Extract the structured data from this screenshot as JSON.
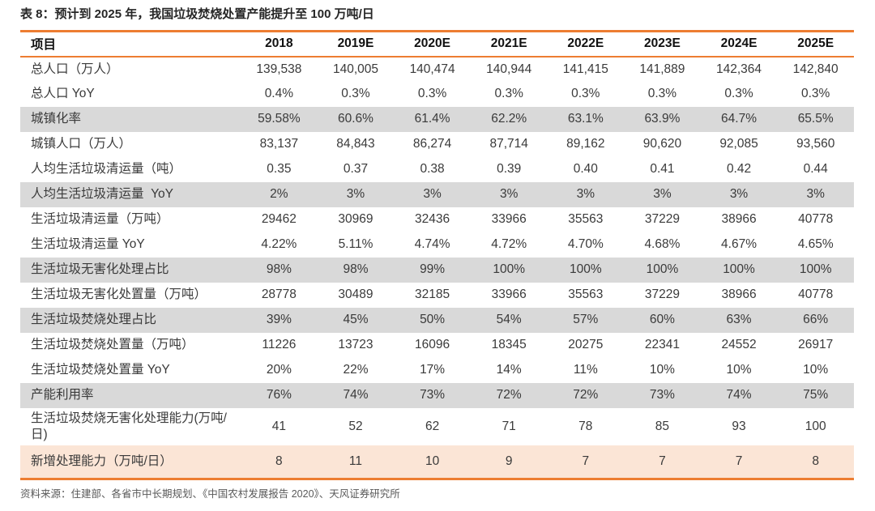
{
  "colors": {
    "accent_orange_rule": "#ed7d31",
    "row_shade_gray": "#d9d9d9",
    "row_highlight_peach": "#fbe5d6",
    "header_text": "#111111",
    "body_text": "#3a3a3a",
    "source_text": "#595959"
  },
  "chart_data": {
    "type": "table",
    "title": "表 8：预计到 2025 年，我国垃圾焚烧处置产能提升至 100 万吨/日",
    "columns": [
      "项目",
      "2018",
      "2019E",
      "2020E",
      "2021E",
      "2022E",
      "2023E",
      "2024E",
      "2025E"
    ],
    "rows": [
      {
        "label": "总人口（万人）",
        "style": "plain",
        "values": [
          "139,538",
          "140,005",
          "140,474",
          "140,944",
          "141,415",
          "141,889",
          "142,364",
          "142,840"
        ]
      },
      {
        "label": "总人口 YoY",
        "style": "plain",
        "values": [
          "0.4%",
          "0.3%",
          "0.3%",
          "0.3%",
          "0.3%",
          "0.3%",
          "0.3%",
          "0.3%"
        ]
      },
      {
        "label": "城镇化率",
        "style": "gray",
        "values": [
          "59.58%",
          "60.6%",
          "61.4%",
          "62.2%",
          "63.1%",
          "63.9%",
          "64.7%",
          "65.5%"
        ]
      },
      {
        "label": "城镇人口（万人）",
        "style": "plain",
        "values": [
          "83,137",
          "84,843",
          "86,274",
          "87,714",
          "89,162",
          "90,620",
          "92,085",
          "93,560"
        ]
      },
      {
        "label": "人均生活垃圾清运量（吨）",
        "style": "plain",
        "values": [
          "0.35",
          "0.37",
          "0.38",
          "0.39",
          "0.40",
          "0.41",
          "0.42",
          "0.44"
        ]
      },
      {
        "label": "人均生活垃圾清运量  YoY",
        "style": "gray",
        "values": [
          "2%",
          "3%",
          "3%",
          "3%",
          "3%",
          "3%",
          "3%",
          "3%"
        ]
      },
      {
        "label": "生活垃圾清运量（万吨）",
        "style": "plain",
        "values": [
          "29462",
          "30969",
          "32436",
          "33966",
          "35563",
          "37229",
          "38966",
          "40778"
        ]
      },
      {
        "label": "生活垃圾清运量 YoY",
        "style": "plain",
        "values": [
          "4.22%",
          "5.11%",
          "4.74%",
          "4.72%",
          "4.70%",
          "4.68%",
          "4.67%",
          "4.65%"
        ]
      },
      {
        "label": "生活垃圾无害化处理占比",
        "style": "gray",
        "values": [
          "98%",
          "98%",
          "99%",
          "100%",
          "100%",
          "100%",
          "100%",
          "100%"
        ]
      },
      {
        "label": "生活垃圾无害化处置量（万吨）",
        "style": "plain",
        "values": [
          "28778",
          "30489",
          "32185",
          "33966",
          "35563",
          "37229",
          "38966",
          "40778"
        ]
      },
      {
        "label": "生活垃圾焚烧处理占比",
        "style": "gray",
        "values": [
          "39%",
          "45%",
          "50%",
          "54%",
          "57%",
          "60%",
          "63%",
          "66%"
        ]
      },
      {
        "label": "生活垃圾焚烧处置量（万吨）",
        "style": "plain",
        "values": [
          "11226",
          "13723",
          "16096",
          "18345",
          "20275",
          "22341",
          "24552",
          "26917"
        ]
      },
      {
        "label": "生活垃圾焚烧处置量 YoY",
        "style": "plain",
        "values": [
          "20%",
          "22%",
          "17%",
          "14%",
          "11%",
          "10%",
          "10%",
          "10%"
        ]
      },
      {
        "label": "产能利用率",
        "style": "gray",
        "values": [
          "76%",
          "74%",
          "73%",
          "72%",
          "72%",
          "73%",
          "74%",
          "75%"
        ]
      },
      {
        "label": "生活垃圾焚烧无害化处理能力(万吨/日)",
        "style": "plain",
        "values": [
          "41",
          "52",
          "62",
          "71",
          "78",
          "85",
          "93",
          "100"
        ]
      },
      {
        "label": "新增处理能力（万吨/日）",
        "style": "orange",
        "values": [
          "8",
          "11",
          "10",
          "9",
          "7",
          "7",
          "7",
          "8"
        ]
      }
    ]
  },
  "source": "资料来源：住建部、各省市中长期规划、《中国农村发展报告 2020》、天风证券研究所"
}
